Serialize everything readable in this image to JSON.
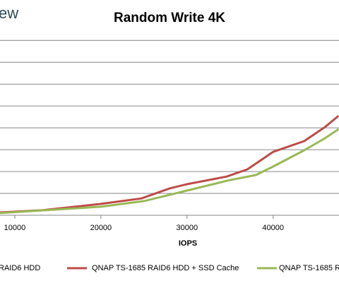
{
  "chart_data": {
    "type": "line",
    "logo_fragment": "ew",
    "title": "Random Write 4K",
    "x_label": "IOPS",
    "legend_fragment": "RAID6 HDD",
    "xlim": [
      8280,
      47650
    ],
    "xticks": [
      10000,
      20000,
      30000,
      40000
    ],
    "ylim": [
      0,
      8.3
    ],
    "ygrid": [
      1,
      2,
      3,
      4,
      5,
      6,
      7,
      8
    ],
    "grid": true,
    "series": [
      {
        "name": "QNAP TS-1685 RAID6 HDD + SSD Cache",
        "color": "#be4b48",
        "x": [
          8280,
          13200,
          20000,
          24700,
          28000,
          30000,
          34600,
          37000,
          40000,
          43600,
          46000,
          47600
        ],
        "values": [
          0.13,
          0.23,
          0.52,
          0.77,
          1.23,
          1.42,
          1.77,
          2.1,
          2.9,
          3.39,
          4.03,
          4.55
        ]
      },
      {
        "name": "QNAP TS-1685 R",
        "color": "#98b954",
        "x": [
          8280,
          20000,
          25000,
          30000,
          35000,
          38000,
          40000,
          43600,
          46000,
          47600
        ],
        "values": [
          0.1,
          0.39,
          0.65,
          1.13,
          1.61,
          1.84,
          2.23,
          2.97,
          3.52,
          3.94
        ]
      }
    ]
  }
}
